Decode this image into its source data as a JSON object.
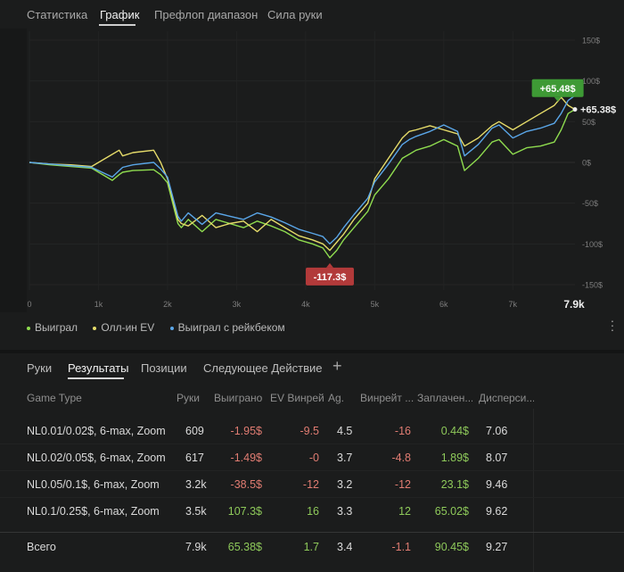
{
  "top_tabs": [
    "Статистика",
    "График",
    "Префлоп диапазон",
    "Сила руки"
  ],
  "active_top_tab": "График",
  "chart_data": {
    "type": "line",
    "title": "",
    "xlabel": "",
    "ylabel": "",
    "x_ticks": [
      "0",
      "1k",
      "2k",
      "3k",
      "4k",
      "5k",
      "6k",
      "7k"
    ],
    "x_end_label": "7.9k",
    "y_ticks": [
      "150$",
      "100$",
      "50$",
      "0$",
      "-50$",
      "-100$",
      "-150$"
    ],
    "xlim": [
      0,
      7900
    ],
    "ylim": [
      -150,
      150
    ],
    "grid": true,
    "annotations": {
      "max_label": "+65.48$",
      "min_label": "-117.3$",
      "end_label": "+65.38$"
    },
    "series": [
      {
        "name": "Выиграл",
        "color": "#8fdc4f",
        "x": [
          0,
          300,
          600,
          900,
          1200,
          1300,
          1350,
          1500,
          1800,
          1900,
          2000,
          2150,
          2200,
          2300,
          2500,
          2700,
          2900,
          3100,
          3300,
          3500,
          3700,
          3900,
          4100,
          4250,
          4350,
          4450,
          4550,
          4700,
          4900,
          5000,
          5200,
          5400,
          5500,
          5600,
          5800,
          6000,
          6200,
          6300,
          6500,
          6700,
          6800,
          7000,
          7200,
          7400,
          7600,
          7700,
          7800,
          7900
        ],
        "values": [
          0,
          -3,
          -5,
          -7,
          -22,
          -15,
          -12,
          -10,
          -9,
          -15,
          -25,
          -75,
          -80,
          -70,
          -85,
          -70,
          -75,
          -80,
          -72,
          -78,
          -85,
          -95,
          -100,
          -105,
          -117,
          -108,
          -95,
          -80,
          -60,
          -40,
          -20,
          5,
          10,
          15,
          20,
          28,
          20,
          -10,
          5,
          25,
          28,
          10,
          18,
          20,
          25,
          40,
          60,
          65
        ]
      },
      {
        "name": "Олл-ин EV",
        "color": "#e6dc6a",
        "x": [
          0,
          300,
          600,
          900,
          1200,
          1300,
          1350,
          1500,
          1800,
          1900,
          2000,
          2150,
          2200,
          2300,
          2500,
          2700,
          2900,
          3100,
          3300,
          3500,
          3700,
          3900,
          4100,
          4250,
          4350,
          4450,
          4550,
          4700,
          4900,
          5000,
          5200,
          5400,
          5500,
          5600,
          5800,
          6000,
          6200,
          6300,
          6500,
          6700,
          6800,
          7000,
          7200,
          7400,
          7600,
          7700,
          7800,
          7900
        ],
        "values": [
          0,
          -2,
          -3,
          -5,
          10,
          15,
          8,
          12,
          15,
          0,
          -20,
          -70,
          -75,
          -78,
          -65,
          -80,
          -75,
          -72,
          -85,
          -70,
          -80,
          -90,
          -95,
          -100,
          -108,
          -98,
          -88,
          -70,
          -50,
          -20,
          5,
          30,
          38,
          40,
          45,
          40,
          35,
          20,
          30,
          45,
          50,
          40,
          50,
          60,
          70,
          80,
          70,
          65
        ]
      },
      {
        "name": "Выиграл с рейкбеком",
        "color": "#5aa6e8",
        "x": [
          0,
          300,
          600,
          900,
          1200,
          1300,
          1350,
          1500,
          1800,
          1900,
          2000,
          2150,
          2200,
          2300,
          2500,
          2700,
          2900,
          3100,
          3300,
          3500,
          3700,
          3900,
          4100,
          4250,
          4350,
          4450,
          4550,
          4700,
          4900,
          5000,
          5200,
          5400,
          5500,
          5600,
          5800,
          6000,
          6200,
          6300,
          6500,
          6700,
          6800,
          7000,
          7200,
          7400,
          7600,
          7700,
          7800,
          7900
        ],
        "values": [
          0,
          -2,
          -4,
          -6,
          -18,
          -10,
          -6,
          -3,
          0,
          -8,
          -18,
          -66,
          -72,
          -62,
          -76,
          -62,
          -66,
          -70,
          -62,
          -67,
          -74,
          -82,
          -87,
          -91,
          -100,
          -92,
          -80,
          -64,
          -44,
          -24,
          -2,
          22,
          28,
          32,
          38,
          46,
          38,
          8,
          22,
          42,
          46,
          30,
          38,
          42,
          48,
          60,
          76,
          82
        ]
      }
    ]
  },
  "legend": {
    "items": [
      {
        "label": "Выиграл",
        "color": "#8fdc4f"
      },
      {
        "label": "Олл-ин EV",
        "color": "#e6dc6a"
      },
      {
        "label": "Выиграл с рейкбеком",
        "color": "#5aa6e8"
      }
    ]
  },
  "bottom_tabs": [
    "Руки",
    "Результаты",
    "Позиции",
    "Следующее Действие"
  ],
  "active_bottom_tab": "Результаты",
  "table": {
    "columns": [
      "Game Type",
      "Руки",
      "Выиграно",
      "EV Винрейт",
      "Ag.",
      "Винрейт ...",
      "Заплачен...",
      "Дисперси..."
    ],
    "rows": [
      [
        "NL0.01/0.02$, 6-max, Zoom",
        "609",
        "-1.95$",
        "-9.5",
        "4.5",
        "-16",
        "0.44$",
        "7.06"
      ],
      [
        "NL0.02/0.05$, 6-max, Zoom",
        "617",
        "-1.49$",
        "-0",
        "3.7",
        "-4.8",
        "1.89$",
        "8.07"
      ],
      [
        "NL0.05/0.1$, 6-max, Zoom",
        "3.2k",
        "-38.5$",
        "-12",
        "3.2",
        "-12",
        "23.1$",
        "9.46"
      ],
      [
        "NL0.1/0.25$, 6-max, Zoom",
        "3.5k",
        "107.3$",
        "16",
        "3.3",
        "12",
        "65.02$",
        "9.62"
      ]
    ],
    "total": [
      "Всего",
      "7.9k",
      "65.38$",
      "1.7",
      "3.4",
      "-1.1",
      "90.45$",
      "9.27"
    ]
  }
}
